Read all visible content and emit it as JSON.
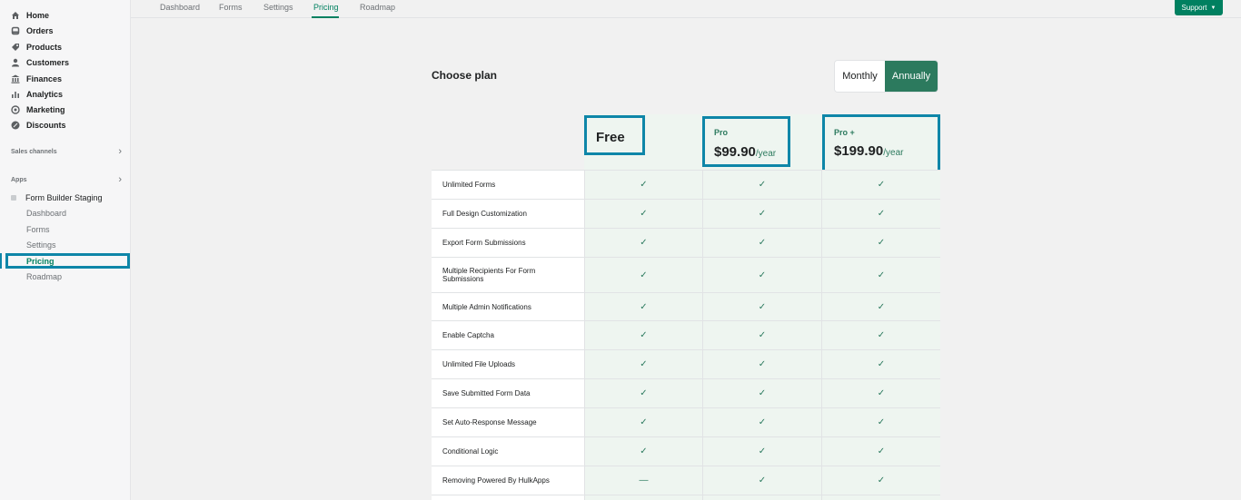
{
  "sidebar": {
    "main_nav": [
      {
        "label": "Home",
        "icon": "home-icon"
      },
      {
        "label": "Orders",
        "icon": "orders-icon"
      },
      {
        "label": "Products",
        "icon": "tag-icon"
      },
      {
        "label": "Customers",
        "icon": "person-icon"
      },
      {
        "label": "Finances",
        "icon": "bank-icon"
      },
      {
        "label": "Analytics",
        "icon": "bar-chart-icon"
      },
      {
        "label": "Marketing",
        "icon": "target-icon"
      },
      {
        "label": "Discounts",
        "icon": "discount-icon"
      }
    ],
    "sales_channels": "Sales channels",
    "apps": "Apps",
    "app_name": "Form Builder Staging",
    "app_items": [
      {
        "label": "Dashboard"
      },
      {
        "label": "Forms"
      },
      {
        "label": "Settings"
      },
      {
        "label": "Pricing"
      },
      {
        "label": "Roadmap"
      }
    ],
    "active_item": "Pricing"
  },
  "tabs": [
    {
      "label": "Dashboard"
    },
    {
      "label": "Forms"
    },
    {
      "label": "Settings"
    },
    {
      "label": "Pricing"
    },
    {
      "label": "Roadmap"
    }
  ],
  "active_tab": "Pricing",
  "support_label": "Support",
  "page_title": "Choose plan",
  "billing_toggle": {
    "monthly": "Monthly",
    "annually": "Annually",
    "selected": "Annually"
  },
  "plans": {
    "free": {
      "name": "Free"
    },
    "pro": {
      "name": "Pro",
      "price": "$99.90",
      "period": "/year"
    },
    "proplus": {
      "name": "Pro +",
      "price": "$199.90",
      "period": "/year"
    }
  },
  "features": [
    {
      "label": "Unlimited Forms",
      "free": "✓",
      "pro": "✓",
      "proplus": "✓"
    },
    {
      "label": "Full Design Customization",
      "free": "✓",
      "pro": "✓",
      "proplus": "✓"
    },
    {
      "label": "Export Form Submissions",
      "free": "✓",
      "pro": "✓",
      "proplus": "✓"
    },
    {
      "label": "Multiple Recipients For Form Submissions",
      "free": "✓",
      "pro": "✓",
      "proplus": "✓"
    },
    {
      "label": "Multiple Admin Notifications",
      "free": "✓",
      "pro": "✓",
      "proplus": "✓"
    },
    {
      "label": "Enable Captcha",
      "free": "✓",
      "pro": "✓",
      "proplus": "✓"
    },
    {
      "label": "Unlimited File Uploads",
      "free": "✓",
      "pro": "✓",
      "proplus": "✓"
    },
    {
      "label": "Save Submitted Form Data",
      "free": "✓",
      "pro": "✓",
      "proplus": "✓"
    },
    {
      "label": "Set Auto-Response Message",
      "free": "✓",
      "pro": "✓",
      "proplus": "✓"
    },
    {
      "label": "Conditional Logic",
      "free": "✓",
      "pro": "✓",
      "proplus": "✓"
    },
    {
      "label": "Removing Powered By HulkApps",
      "free": "—",
      "pro": "✓",
      "proplus": "✓"
    }
  ],
  "colors": {
    "accent": "#008060",
    "highlight": "#0e86a8",
    "plan_bg": "#eef5f0"
  }
}
